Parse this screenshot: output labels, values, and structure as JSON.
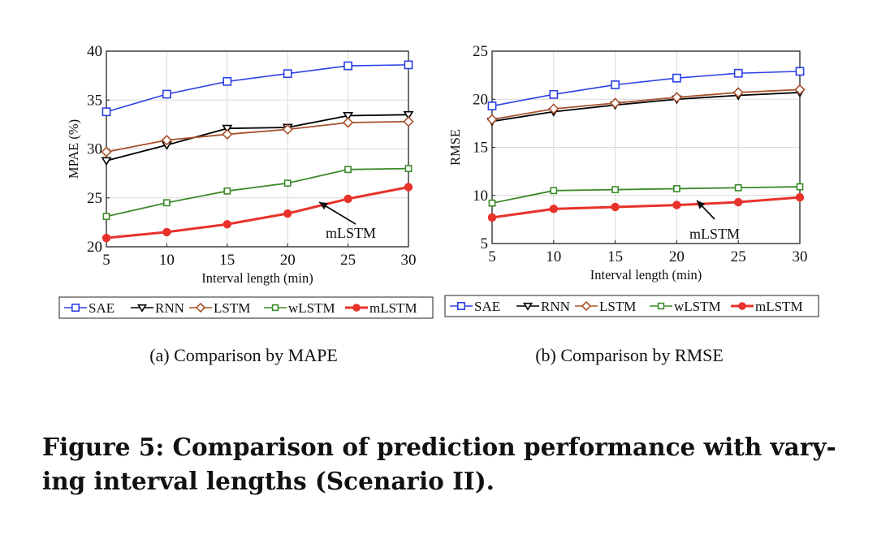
{
  "figure": {
    "caption_line1": "Figure 5: Comparison of prediction performance with vary-",
    "caption_line2": "ing interval lengths (Scenario II)."
  },
  "colors": {
    "SAE": "#2b3fe6",
    "RNN": "#000000",
    "LSTM": "#a8502a",
    "wLSTM": "#3b8a2a",
    "mLSTM": "#e8322a"
  },
  "chart_data": [
    {
      "type": "line",
      "subcaption": "(a)  Comparison by MAPE",
      "xlabel": "Interval length (min)",
      "ylabel": "MPAE (%)",
      "x": [
        5,
        10,
        15,
        20,
        25,
        30
      ],
      "xlim": [
        5,
        30
      ],
      "ylim": [
        20,
        40
      ],
      "xticks": [
        5,
        10,
        15,
        20,
        25,
        30
      ],
      "yticks": [
        20,
        25,
        30,
        35,
        40
      ],
      "grid": true,
      "legend_position": "below",
      "annotation": "mLSTM",
      "series": [
        {
          "name": "SAE",
          "marker": "square",
          "values": [
            33.8,
            35.6,
            36.9,
            37.7,
            38.5,
            38.6
          ]
        },
        {
          "name": "RNN",
          "marker": "triangle-down",
          "values": [
            28.8,
            30.4,
            32.1,
            32.2,
            33.4,
            33.5
          ]
        },
        {
          "name": "LSTM",
          "marker": "diamond",
          "values": [
            29.7,
            30.9,
            31.5,
            32.0,
            32.7,
            32.8
          ]
        },
        {
          "name": "wLSTM",
          "marker": "square",
          "values": [
            23.1,
            24.5,
            25.7,
            26.5,
            27.9,
            28.0
          ]
        },
        {
          "name": "mLSTM",
          "marker": "circle",
          "values": [
            20.9,
            21.5,
            22.3,
            23.4,
            24.9,
            26.1
          ]
        }
      ]
    },
    {
      "type": "line",
      "subcaption": "(b)  Comparison by RMSE",
      "xlabel": "Interval length (min)",
      "ylabel": "RMSE",
      "x": [
        5,
        10,
        15,
        20,
        25,
        30
      ],
      "xlim": [
        5,
        30
      ],
      "ylim": [
        5,
        25
      ],
      "xticks": [
        5,
        10,
        15,
        20,
        25,
        30
      ],
      "yticks": [
        5,
        10,
        15,
        20,
        25
      ],
      "grid": true,
      "legend_position": "below",
      "annotation": "mLSTM",
      "series": [
        {
          "name": "SAE",
          "marker": "square",
          "values": [
            19.3,
            20.5,
            21.5,
            22.2,
            22.7,
            22.9
          ]
        },
        {
          "name": "RNN",
          "marker": "triangle-down",
          "values": [
            17.7,
            18.7,
            19.4,
            20.0,
            20.4,
            20.7
          ]
        },
        {
          "name": "LSTM",
          "marker": "diamond",
          "values": [
            17.9,
            19.0,
            19.6,
            20.2,
            20.7,
            21.0
          ]
        },
        {
          "name": "wLSTM",
          "marker": "square",
          "values": [
            9.2,
            10.5,
            10.6,
            10.7,
            10.8,
            10.9
          ]
        },
        {
          "name": "mLSTM",
          "marker": "circle",
          "values": [
            7.7,
            8.6,
            8.8,
            9.0,
            9.3,
            9.8
          ]
        }
      ]
    }
  ]
}
